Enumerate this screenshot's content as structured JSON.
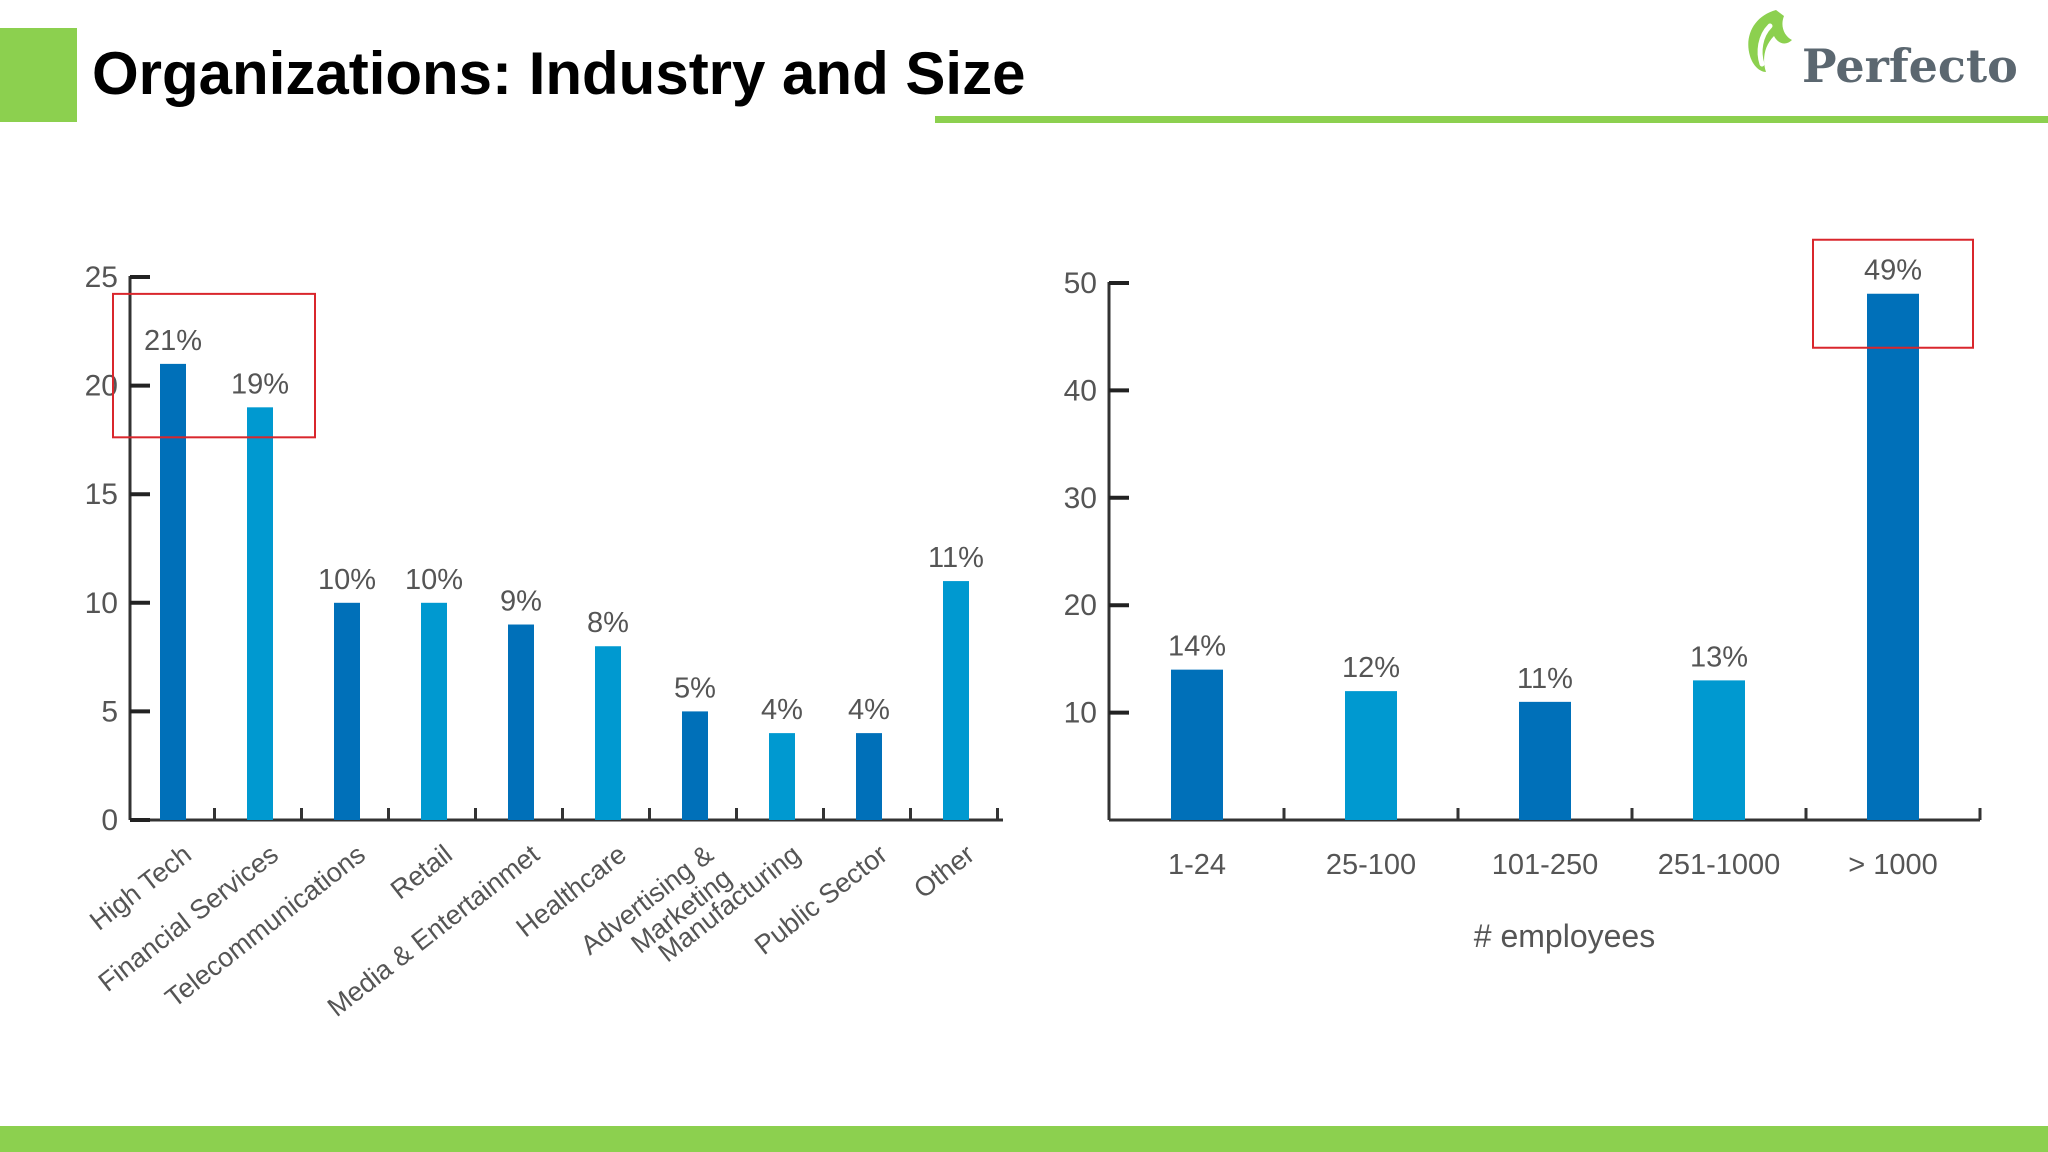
{
  "slide": {
    "title": "Organizations: Industry and Size",
    "logo_text": "Perfecto",
    "colors": {
      "accent": "#8cd04f",
      "bar_dark": "#0070b9",
      "bar_light": "#0099d0",
      "highlight_box": "#d9262c"
    }
  },
  "chart_data": [
    {
      "type": "bar",
      "categories": [
        "High Tech",
        "Financial Services",
        "Telecommunications",
        "Retail",
        "Media & Entertainmet",
        "Healthcare",
        "Advertising &\nMarketing",
        "Manufacturing",
        "Public Sector",
        "Other"
      ],
      "values": [
        21,
        19,
        10,
        10,
        9,
        8,
        5,
        4,
        4,
        11
      ],
      "data_labels": [
        "21%",
        "19%",
        "10%",
        "10%",
        "9%",
        "8%",
        "5%",
        "4%",
        "4%",
        "11%"
      ],
      "yticks": [
        0,
        5,
        10,
        15,
        20,
        25
      ],
      "ylim": [
        0,
        25
      ],
      "xlabel": "",
      "ylabel": "",
      "highlighted_categories": [
        "High Tech",
        "Financial Services"
      ]
    },
    {
      "type": "bar",
      "categories": [
        "1-24",
        "25-100",
        "101-250",
        "251-1000",
        "> 1000"
      ],
      "values": [
        14,
        12,
        11,
        13,
        49
      ],
      "data_labels": [
        "14%",
        "12%",
        "11%",
        "13%",
        "49%"
      ],
      "yticks": [
        10,
        20,
        30,
        40,
        50
      ],
      "ylim": [
        0,
        50
      ],
      "xlabel": "# employees",
      "ylabel": "",
      "highlighted_categories": [
        "> 1000"
      ]
    }
  ]
}
